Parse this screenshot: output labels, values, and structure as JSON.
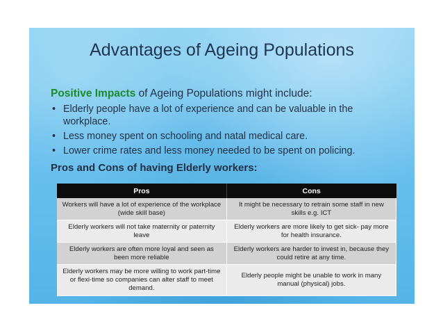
{
  "slide": {
    "title": "Advantages of Ageing Populations",
    "intro_highlight": "Positive Impacts",
    "intro_rest": " of Ageing Populations might include:",
    "bullet_glyph": "•",
    "bullets": [
      "Elderly people have a lot of experience and can be valuable in the workplace.",
      "Less money spent on schooling and natal medical care.",
      "Lower crime rates and less money needed to be spent on policing."
    ],
    "subheading": "Pros and Cons of having Elderly workers:",
    "colors": {
      "title": "#1f3550",
      "highlight": "#1a8a2a",
      "background": "#6ec2ee",
      "table_header": "#0d0d0d"
    }
  },
  "table": {
    "headers": [
      "Pros",
      "Cons"
    ],
    "rows": [
      {
        "pro": "Workers will have a lot of experience of the workplace (wide skill base)",
        "con": "It might be necessary to retrain some staff in new skills e.g. ICT"
      },
      {
        "pro": "Elderly workers will not take maternity or paternity leave",
        "con": "Elderly workers are more likely to get sick- pay more for health insurance."
      },
      {
        "pro": "Elderly workers are often more loyal and seen as been more reliable",
        "con": "Elderly workers are harder to invest in, because they could retire at any time."
      },
      {
        "pro": "Elderly workers may be more willing to work part-time or flexi-time so companies can alter staff to meet demand.",
        "con": "Elderly people might be unable to work in many manual (physical) jobs."
      }
    ]
  }
}
